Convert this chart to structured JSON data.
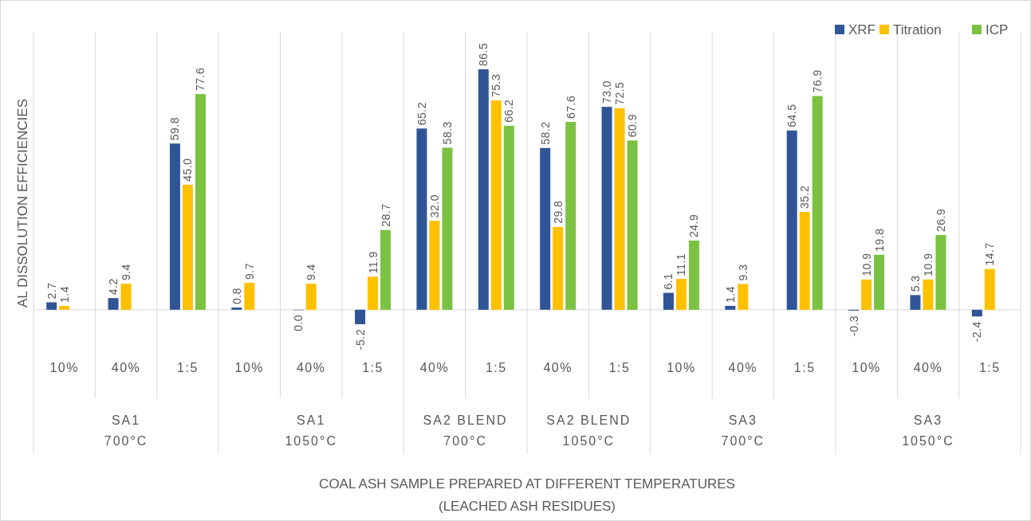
{
  "chart_data": [
    {
      "type": "bar",
      "ylabel": "AL DISSOLUTION EFFICIENCIES",
      "xlabel": "SA1\n700°C",
      "annotations": [
        "COAL ASH SAMPLE PREPARED AT DIFFERENT TEMPERATURES\n(LEACHED ASH RESIDUES)"
      ],
      "categories": [
        "10%",
        "40%",
        "1:5"
      ],
      "series": [
        {
          "color": "#2f5597",
          "values": [
            2.7,
            4.2,
            59.8
          ],
          "value_labels": [
            "2.7",
            "4.2",
            "59.8"
          ]
        },
        {
          "color": "#ffc000",
          "values": [
            1.4,
            9.4,
            45.0
          ],
          "value_labels": [
            "1.4",
            "9.4",
            "45.0"
          ]
        },
        {
          "color": "#7cc242",
          "values": [
            null,
            null,
            77.6
          ],
          "value_labels": [
            null,
            null,
            "77.6"
          ]
        }
      ]
    },
    {
      "type": "bar",
      "xlabel": "SA1\n1050°C",
      "categories": [
        "10%",
        "40%",
        "1:5"
      ],
      "series": [
        {
          "color": "#2f5597",
          "values": [
            0.8,
            0.0,
            -5.2
          ],
          "value_labels": [
            "0.8",
            "0.0",
            "-5.2"
          ]
        },
        {
          "color": "#ffc000",
          "values": [
            9.7,
            9.4,
            11.9
          ],
          "value_labels": [
            "9.7",
            "9.4",
            "11.9"
          ]
        },
        {
          "color": "#7cc242",
          "values": [
            null,
            null,
            28.7
          ],
          "value_labels": [
            null,
            null,
            "28.7"
          ]
        }
      ]
    },
    {
      "type": "bar",
      "xlabel": "SA2 BLEND\n700°C",
      "categories": [
        "40%",
        "1:5"
      ],
      "series": [
        {
          "color": "#2f5597",
          "values": [
            65.2,
            86.5
          ],
          "value_labels": [
            "65.2",
            "86.5"
          ]
        },
        {
          "color": "#ffc000",
          "values": [
            32.0,
            75.3
          ],
          "value_labels": [
            "32.0",
            "75.3"
          ]
        },
        {
          "color": "#7cc242",
          "values": [
            58.3,
            66.2
          ],
          "value_labels": [
            "58.3",
            "66.2"
          ]
        }
      ]
    },
    {
      "type": "bar",
      "xlabel": "SA2 BLEND\n1050°C",
      "categories": [
        "40%",
        "1:5"
      ],
      "series": [
        {
          "color": "#2f5597",
          "values": [
            58.2,
            73.0
          ],
          "value_labels": [
            "58.2",
            "73.0"
          ]
        },
        {
          "color": "#ffc000",
          "values": [
            29.8,
            72.5
          ],
          "value_labels": [
            "29.8",
            "72.5"
          ]
        },
        {
          "color": "#7cc242",
          "values": [
            67.6,
            60.9
          ],
          "value_labels": [
            "67.6",
            "60.9"
          ]
        }
      ]
    },
    {
      "type": "bar",
      "xlabel": "SA3\n700°C",
      "categories": [
        "10%",
        "40%",
        "1:5"
      ],
      "series": [
        {
          "color": "#2f5597",
          "values": [
            6.1,
            1.4,
            64.5
          ],
          "value_labels": [
            "6.1",
            "1.4",
            "64.5"
          ]
        },
        {
          "color": "#ffc000",
          "values": [
            11.1,
            9.3,
            35.2
          ],
          "value_labels": [
            "11.1",
            "9.3",
            "35.2"
          ]
        },
        {
          "color": "#7cc242",
          "values": [
            24.9,
            null,
            76.9
          ],
          "value_labels": [
            "24.9",
            null,
            "76.9"
          ]
        }
      ]
    },
    {
      "type": "bar",
      "xlabel": "SA3\n1050°C",
      "legend": "top right",
      "categories": [
        "10%",
        "40%",
        "1:5"
      ],
      "series": [
        {
          "name": "XRF",
          "color": "#2f5597",
          "values": [
            -0.3,
            5.3,
            -2.4
          ],
          "value_labels": [
            "-0.3",
            "5.3",
            "-2.4"
          ]
        },
        {
          "name": "Titration",
          "color": "#ffc000",
          "values": [
            10.9,
            10.9,
            14.7
          ],
          "value_labels": [
            "10.9",
            "10.9",
            "14.7"
          ]
        },
        {
          "name": "ICP",
          "color": "#7cc242",
          "values": [
            19.8,
            26.9,
            null
          ],
          "value_labels": [
            "19.8",
            "26.9",
            null
          ]
        }
      ]
    }
  ]
}
